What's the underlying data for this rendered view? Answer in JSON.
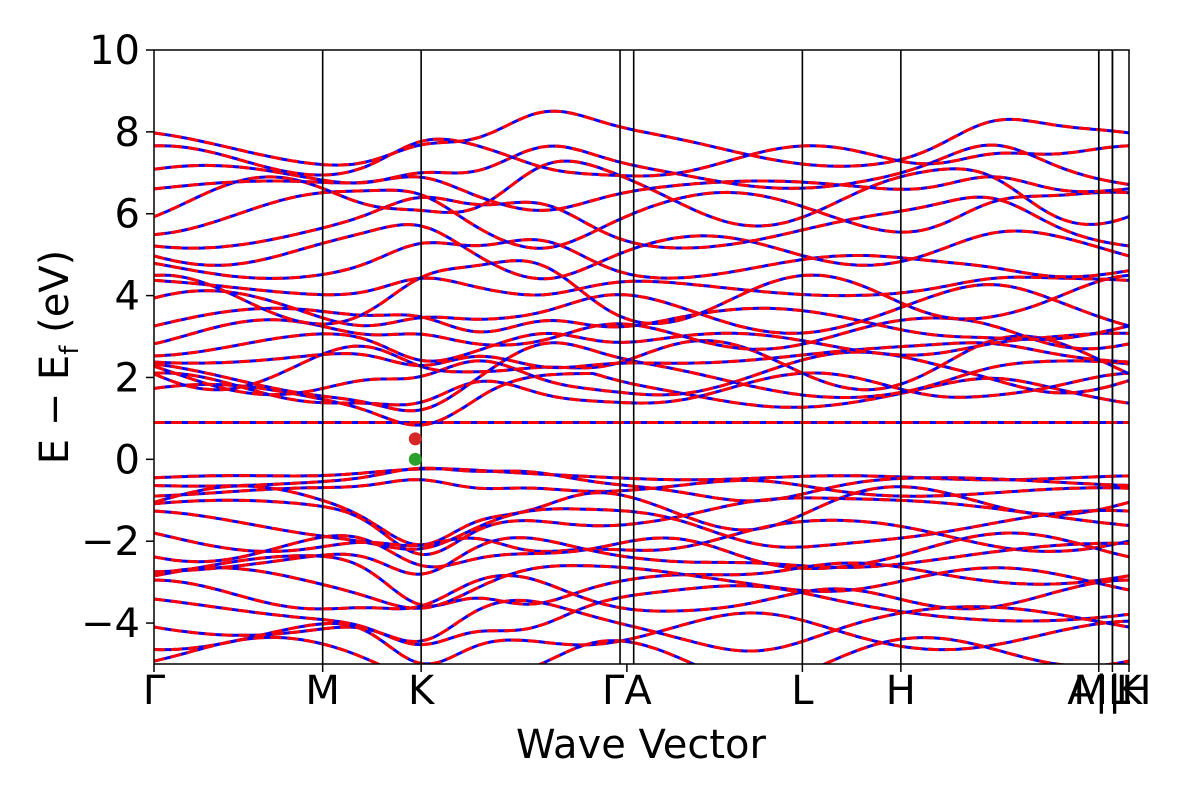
{
  "chart_data": {
    "type": "line",
    "xlabel": "Wave Vector",
    "ylabel_main": "E − E",
    "ylabel_sub": "f",
    "ylabel_unit": " (eV)",
    "ylim": [
      -5,
      10
    ],
    "yticks": [
      -4,
      -2,
      0,
      2,
      4,
      6,
      8,
      10
    ],
    "ytick_labels": [
      "−4",
      "−2",
      "0",
      "2",
      "4",
      "6",
      "8",
      "10"
    ],
    "k_points": [
      {
        "label": "Γ",
        "x": 0.0
      },
      {
        "label": "M",
        "x": 0.173
      },
      {
        "label": "K",
        "x": 0.274
      },
      {
        "label": "Γ",
        "x": 0.478
      },
      {
        "label": "A",
        "x": 0.492
      },
      {
        "label": "L",
        "x": 0.665
      },
      {
        "label": "H",
        "x": 0.766
      },
      {
        "label": "A",
        "x": 0.969
      },
      {
        "label": "L",
        "x": 0.983
      },
      {
        "label": "M",
        "x": 0.983
      },
      {
        "label": "H",
        "x": 1.0
      },
      {
        "label": "K",
        "x": 1.0
      }
    ],
    "k_label_text": [
      "Γ",
      "M",
      "K",
      "ΓA",
      "L",
      "H",
      "A|L",
      "M|H",
      "K"
    ],
    "series": [
      {
        "color": "#0000ff",
        "style": "solid"
      },
      {
        "color": "#ff0000",
        "style": "dashed"
      }
    ],
    "valence_bands": [
      -0.2,
      -0.55,
      -0.8,
      -1.0,
      -1.35,
      -1.6,
      -1.9,
      -2.15,
      -2.4,
      -2.7,
      -3.0,
      -3.3,
      -3.6,
      -3.95,
      -4.3,
      -4.7
    ],
    "conduction_bands": [
      0.9,
      1.55,
      1.75,
      1.95,
      2.1,
      2.3,
      2.55,
      2.8,
      3.05,
      3.25,
      3.6,
      3.9,
      4.2,
      4.7,
      5.1,
      5.6,
      6.0,
      6.3,
      6.6,
      6.9,
      7.3,
      7.6
    ],
    "markers": [
      {
        "label": "CBM",
        "x": 0.268,
        "y": 0.5,
        "color": "#d62728"
      },
      {
        "label": "VBM",
        "x": 0.268,
        "y": 0.0,
        "color": "#2ca02c"
      }
    ]
  }
}
